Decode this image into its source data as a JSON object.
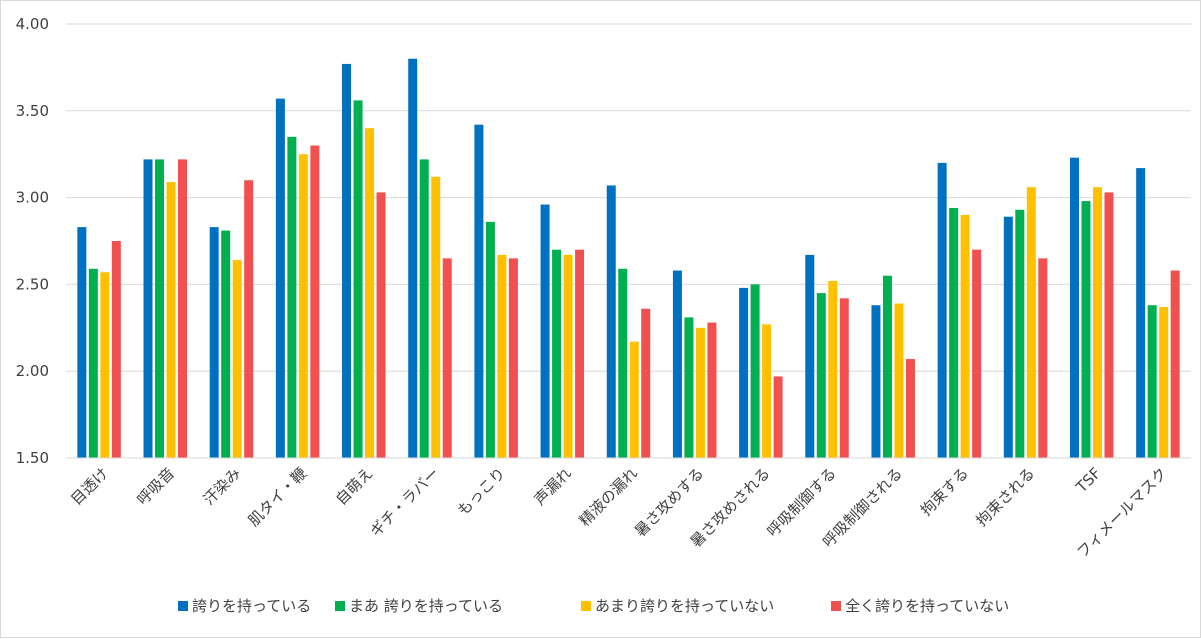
{
  "chart_data": {
    "type": "bar",
    "categories": [
      "目透け",
      "呼吸音",
      "汗染み",
      "肌タイ・鞭",
      "自萌え",
      "ギチ・ラバー",
      "もっこり",
      "声漏れ",
      "精液の漏れ",
      "暑さ攻めする",
      "暑さ攻めされる",
      "呼吸制御する",
      "呼吸制御される",
      "拘束する",
      "拘束される",
      "TSF",
      "フィメールマスク"
    ],
    "series": [
      {
        "name": "誇りを持っている",
        "color": "#0070c0",
        "values": [
          2.83,
          3.22,
          2.83,
          3.57,
          3.77,
          3.8,
          3.42,
          2.96,
          3.07,
          2.58,
          2.48,
          2.67,
          2.38,
          3.2,
          2.89,
          3.23,
          3.17
        ]
      },
      {
        "name": "まあ 誇りを持っている",
        "color": "#00b050",
        "values": [
          2.59,
          3.22,
          2.81,
          3.35,
          3.56,
          3.22,
          2.86,
          2.7,
          2.59,
          2.31,
          2.5,
          2.45,
          2.55,
          2.94,
          2.93,
          2.98,
          2.38
        ]
      },
      {
        "name": "あまり誇りを持っていない",
        "color": "#ffc000",
        "values": [
          2.57,
          3.09,
          2.64,
          3.25,
          3.4,
          3.12,
          2.67,
          2.67,
          2.17,
          2.25,
          2.27,
          2.52,
          2.39,
          2.9,
          3.06,
          3.06,
          2.37
        ]
      },
      {
        "name": "全く誇りを持っていない",
        "color": "#f05050",
        "values": [
          2.75,
          3.22,
          3.1,
          3.3,
          3.03,
          2.65,
          2.65,
          2.7,
          2.36,
          2.28,
          1.97,
          2.42,
          2.07,
          2.7,
          2.65,
          3.03,
          2.58
        ]
      }
    ],
    "yticks": [
      "1.50",
      "2.00",
      "2.50",
      "3.00",
      "3.50",
      "4.00"
    ],
    "ylim": [
      1.5,
      4.0
    ],
    "grid": true,
    "legend_position": "bottom",
    "title": "",
    "xlabel": "",
    "ylabel": ""
  }
}
